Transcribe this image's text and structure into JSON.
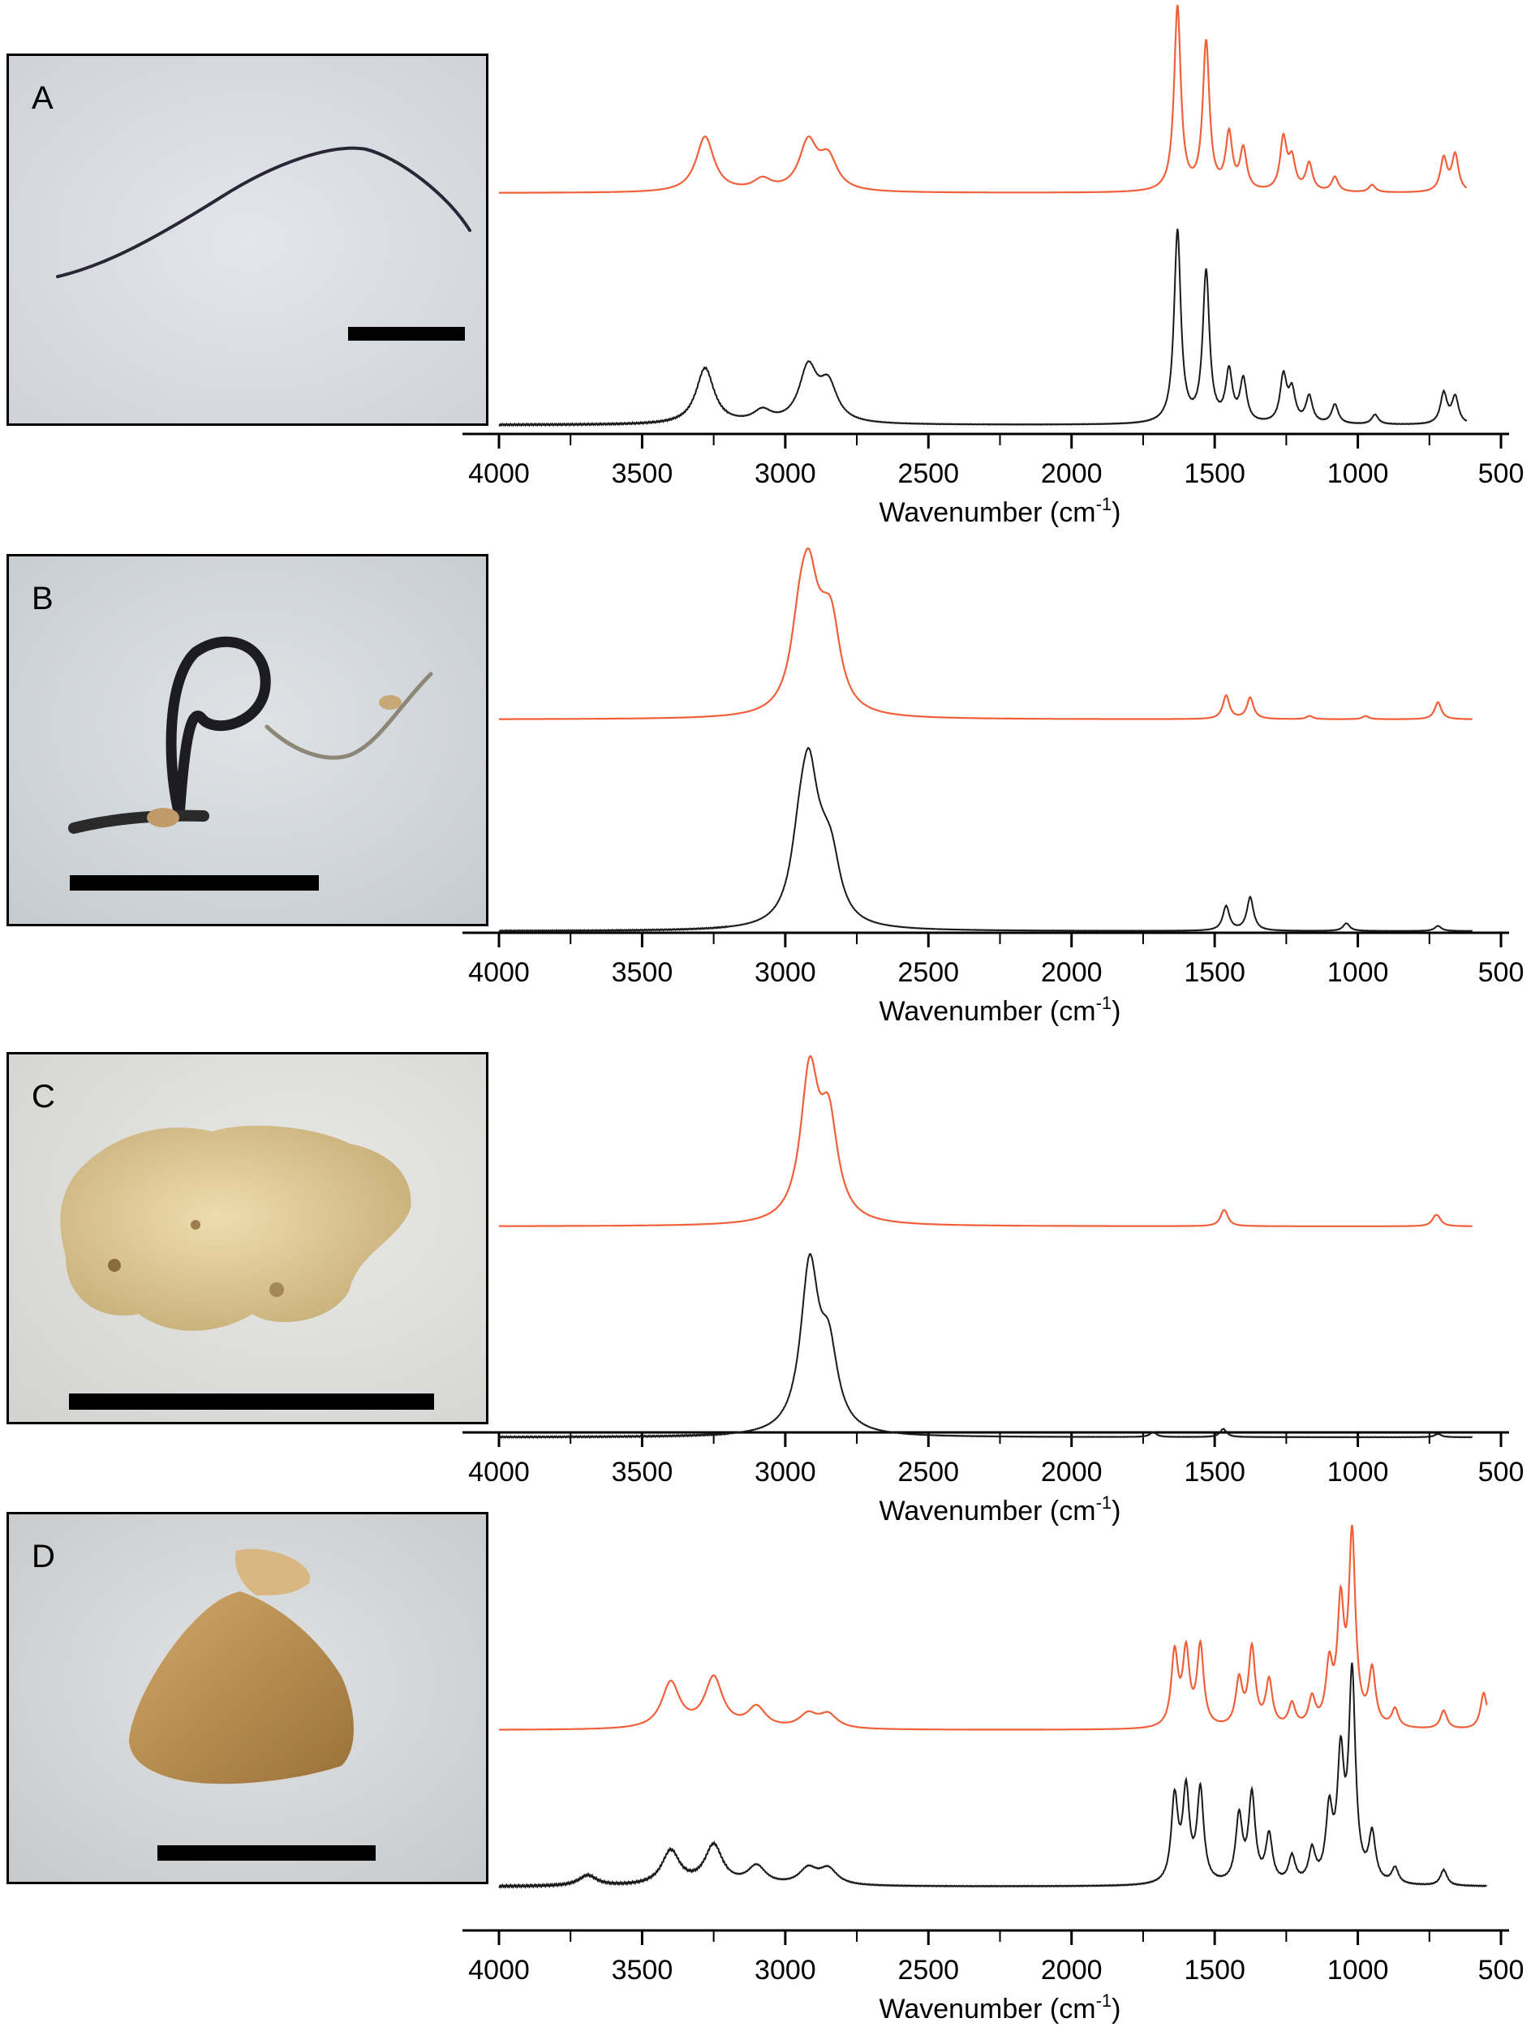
{
  "colors": {
    "reference_spectrum": "#f0603a",
    "sample_spectrum": "#1a1a1a",
    "axis": "#000000",
    "scale_bar": "#000000"
  },
  "panels": [
    {
      "label": "A",
      "subject": "dark fibre on white filter"
    },
    {
      "label": "B",
      "subject": "looped dark fibre on white filter"
    },
    {
      "label": "C",
      "subject": "pale yellow particle"
    },
    {
      "label": "D",
      "subject": "amber particle"
    }
  ],
  "chart_data": [
    {
      "type": "line",
      "panel": "A",
      "xlabel": "Wavenumber (cm-1)",
      "xlim": [
        4000,
        500
      ],
      "x_reversed": true,
      "xticks": [
        4000,
        3500,
        3000,
        2500,
        2000,
        1500,
        1000,
        500
      ],
      "grid": false,
      "y_axis_shown": false,
      "peaks_upward": true,
      "x_range": [
        4000,
        620
      ],
      "series": [
        {
          "role": "reference",
          "color": "#f0603a",
          "peaks": [
            [
              3280,
              0.3
            ],
            [
              3080,
              0.06
            ],
            [
              2920,
              0.26
            ],
            [
              2850,
              0.17
            ],
            [
              1630,
              1.0
            ],
            [
              1530,
              0.8
            ],
            [
              1450,
              0.3
            ],
            [
              1400,
              0.22
            ],
            [
              1260,
              0.28
            ],
            [
              1230,
              0.16
            ],
            [
              1170,
              0.15
            ],
            [
              1080,
              0.08
            ],
            [
              950,
              0.04
            ],
            [
              700,
              0.18
            ],
            [
              660,
              0.2
            ]
          ]
        },
        {
          "role": "sample",
          "color": "#1a1a1a",
          "peaks": [
            [
              3280,
              0.29
            ],
            [
              3080,
              0.06
            ],
            [
              2920,
              0.28
            ],
            [
              2850,
              0.19
            ],
            [
              1630,
              1.0
            ],
            [
              1530,
              0.78
            ],
            [
              1450,
              0.26
            ],
            [
              1400,
              0.22
            ],
            [
              1260,
              0.24
            ],
            [
              1230,
              0.16
            ],
            [
              1170,
              0.14
            ],
            [
              1080,
              0.1
            ],
            [
              940,
              0.05
            ],
            [
              700,
              0.16
            ],
            [
              660,
              0.14
            ]
          ]
        }
      ]
    },
    {
      "type": "line",
      "panel": "B",
      "xlabel": "Wavenumber (cm-1)",
      "xlim": [
        4000,
        500
      ],
      "x_reversed": true,
      "xticks": [
        4000,
        3500,
        3000,
        2500,
        2000,
        1500,
        1000,
        500
      ],
      "grid": false,
      "y_axis_shown": false,
      "peaks_upward": true,
      "x_range": [
        4000,
        600
      ],
      "series": [
        {
          "role": "reference",
          "color": "#f0603a",
          "peaks": [
            [
              2950,
              0.62
            ],
            [
              2917,
              1.0
            ],
            [
              2870,
              0.28
            ],
            [
              2838,
              0.7
            ],
            [
              1460,
              0.22
            ],
            [
              1376,
              0.2
            ],
            [
              1168,
              0.03
            ],
            [
              973,
              0.03
            ],
            [
              720,
              0.16
            ]
          ]
        },
        {
          "role": "sample",
          "color": "#1a1a1a",
          "peaks": [
            [
              2950,
              0.44
            ],
            [
              2917,
              1.0
            ],
            [
              2870,
              0.24
            ],
            [
              2838,
              0.4
            ],
            [
              1460,
              0.19
            ],
            [
              1376,
              0.26
            ],
            [
              1040,
              0.06
            ],
            [
              720,
              0.04
            ]
          ]
        }
      ]
    },
    {
      "type": "line",
      "panel": "C",
      "xlabel": "Wavenumber (cm-1)",
      "xlim": [
        4000,
        500
      ],
      "x_reversed": true,
      "xticks": [
        4000,
        3500,
        3000,
        2500,
        2000,
        1500,
        1000,
        500
      ],
      "grid": false,
      "y_axis_shown": false,
      "peaks_upward": true,
      "x_range": [
        4000,
        600
      ],
      "series": [
        {
          "role": "reference",
          "color": "#f0603a",
          "peaks": [
            [
              2915,
              1.0
            ],
            [
              2848,
              0.65
            ],
            [
              1470,
              0.07
            ],
            [
              1462,
              0.05
            ],
            [
              730,
              0.05
            ],
            [
              719,
              0.04
            ]
          ]
        },
        {
          "role": "sample",
          "color": "#1a1a1a",
          "peaks": [
            [
              2915,
              1.0
            ],
            [
              2848,
              0.46
            ],
            [
              1715,
              0.03
            ],
            [
              1470,
              0.05
            ],
            [
              720,
              0.02
            ]
          ]
        }
      ]
    },
    {
      "type": "line",
      "panel": "D",
      "xlabel": "Wavenumber (cm-1)",
      "xlim": [
        4000,
        500
      ],
      "x_reversed": true,
      "xticks": [
        4000,
        3500,
        3000,
        2500,
        2000,
        1500,
        1000,
        500
      ],
      "grid": false,
      "y_axis_shown": false,
      "peaks_upward": true,
      "x_range": [
        4000,
        550
      ],
      "series": [
        {
          "role": "reference",
          "color": "#f0603a",
          "peaks": [
            [
              3400,
              0.2
            ],
            [
              3250,
              0.22
            ],
            [
              3100,
              0.09
            ],
            [
              2920,
              0.06
            ],
            [
              2850,
              0.06
            ],
            [
              1640,
              0.32
            ],
            [
              1600,
              0.32
            ],
            [
              1550,
              0.35
            ],
            [
              1415,
              0.2
            ],
            [
              1370,
              0.34
            ],
            [
              1310,
              0.2
            ],
            [
              1230,
              0.1
            ],
            [
              1160,
              0.12
            ],
            [
              1100,
              0.25
            ],
            [
              1060,
              0.5
            ],
            [
              1020,
              0.82
            ],
            [
              950,
              0.24
            ],
            [
              870,
              0.08
            ],
            [
              700,
              0.08
            ],
            [
              560,
              0.16
            ]
          ]
        },
        {
          "role": "sample",
          "color": "#1a1a1a",
          "peaks": [
            [
              3690,
              0.04
            ],
            [
              3400,
              0.13
            ],
            [
              3250,
              0.15
            ],
            [
              3100,
              0.07
            ],
            [
              2920,
              0.06
            ],
            [
              2850,
              0.06
            ],
            [
              1640,
              0.32
            ],
            [
              1600,
              0.34
            ],
            [
              1550,
              0.35
            ],
            [
              1415,
              0.25
            ],
            [
              1370,
              0.33
            ],
            [
              1310,
              0.18
            ],
            [
              1230,
              0.1
            ],
            [
              1160,
              0.12
            ],
            [
              1100,
              0.26
            ],
            [
              1060,
              0.45
            ],
            [
              1020,
              0.78
            ],
            [
              950,
              0.18
            ],
            [
              870,
              0.06
            ],
            [
              700,
              0.06
            ]
          ]
        }
      ]
    }
  ]
}
